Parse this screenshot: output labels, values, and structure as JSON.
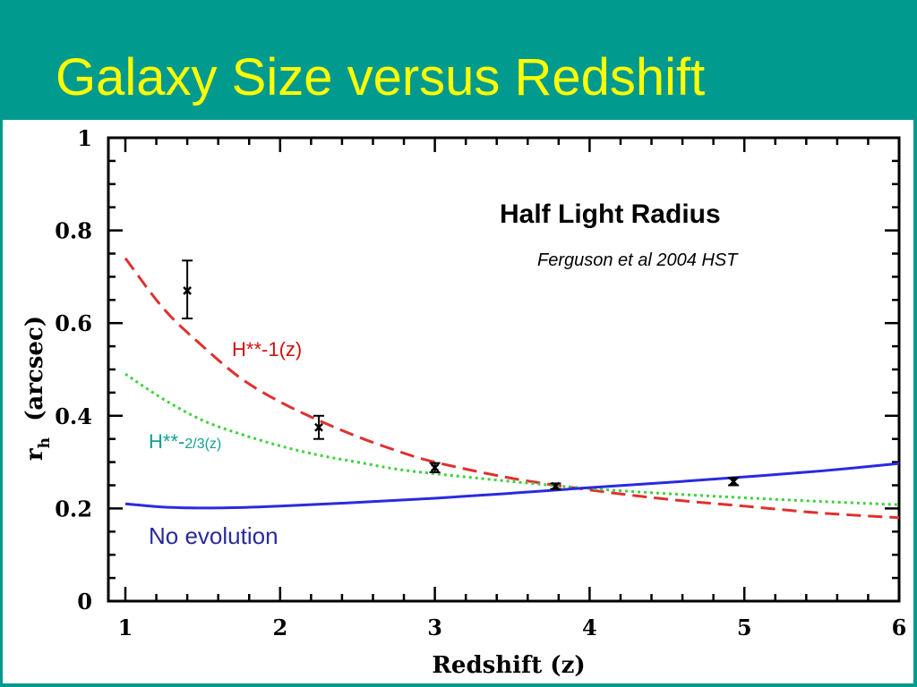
{
  "slide": {
    "title": "Galaxy Size versus Redshift",
    "background_color": "#009a8e",
    "title_color": "#ffff00"
  },
  "chart_data": {
    "type": "line",
    "xlabel": "Redshift (z)",
    "ylabel_main": "r",
    "ylabel_sub": "h",
    "ylabel_unit": "(arcsec)",
    "xlim": [
      1,
      6
    ],
    "ylim": [
      0,
      1
    ],
    "x_ticks": [
      1,
      2,
      3,
      4,
      5,
      6
    ],
    "x_tick_labels": [
      "1",
      "2",
      "3",
      "4",
      "5",
      "6"
    ],
    "y_ticks": [
      0,
      0.2,
      0.4,
      0.6,
      0.8,
      1
    ],
    "y_tick_labels": [
      "0",
      "0.2",
      "0.4",
      "0.6",
      "0.8",
      "1"
    ],
    "grid": false,
    "annotations": {
      "heading": "Half Light Radius",
      "credit": "Ferguson et al  2004  HST"
    },
    "series": [
      {
        "name": "H**-1(z)",
        "style": "dashed",
        "color": "#e03030",
        "label_color": "#d01010",
        "x": [
          1.0,
          1.25,
          1.5,
          1.75,
          2.0,
          2.25,
          2.5,
          2.75,
          3.0,
          3.5,
          4.0,
          4.5,
          5.0,
          5.5,
          6.0
        ],
        "y": [
          0.74,
          0.63,
          0.55,
          0.48,
          0.43,
          0.39,
          0.355,
          0.325,
          0.3,
          0.265,
          0.24,
          0.22,
          0.205,
          0.19,
          0.18
        ]
      },
      {
        "name": "H**-2/3(z)",
        "name_prefix": "H**-",
        "name_suffix": "2/3(z)",
        "style": "dotted",
        "color": "#40d040",
        "label_color": "#10a090",
        "x": [
          1.0,
          1.25,
          1.5,
          1.75,
          2.0,
          2.25,
          2.5,
          2.75,
          3.0,
          3.5,
          4.0,
          4.5,
          5.0,
          5.5,
          6.0
        ],
        "y": [
          0.49,
          0.435,
          0.39,
          0.36,
          0.335,
          0.315,
          0.3,
          0.285,
          0.275,
          0.258,
          0.243,
          0.232,
          0.223,
          0.215,
          0.208
        ]
      },
      {
        "name": "No evolution",
        "style": "solid",
        "color": "#2a2ae0",
        "label_color": "#2a2a9a",
        "x": [
          1.0,
          1.25,
          1.5,
          1.75,
          2.0,
          2.5,
          3.0,
          3.5,
          4.0,
          4.5,
          5.0,
          5.5,
          6.0
        ],
        "y": [
          0.21,
          0.203,
          0.201,
          0.202,
          0.205,
          0.213,
          0.222,
          0.233,
          0.245,
          0.256,
          0.268,
          0.281,
          0.297
        ]
      }
    ],
    "data_points": [
      {
        "x": 1.4,
        "y": 0.67,
        "yerr_low": 0.61,
        "yerr_high": 0.735
      },
      {
        "x": 2.25,
        "y": 0.375,
        "yerr_low": 0.35,
        "yerr_high": 0.4
      },
      {
        "x": 3.0,
        "y": 0.288,
        "yerr_low": 0.278,
        "yerr_high": 0.298
      },
      {
        "x": 3.78,
        "y": 0.248,
        "yerr_low": 0.242,
        "yerr_high": 0.254
      },
      {
        "x": 4.93,
        "y": 0.258,
        "yerr_low": 0.25,
        "yerr_high": 0.266
      }
    ]
  }
}
